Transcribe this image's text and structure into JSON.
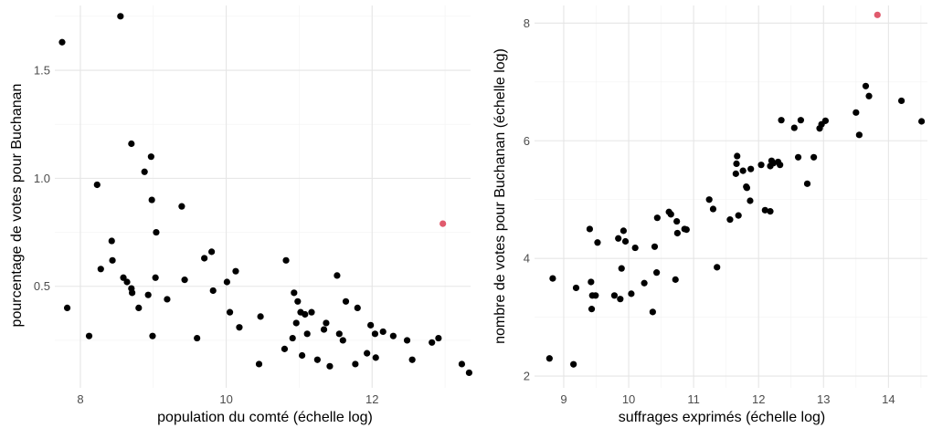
{
  "colors": {
    "point": "#000000",
    "highlight": "#e05a6d",
    "grid_major": "#e5e5e5",
    "grid_minor": "#f3f3f3",
    "tick_text": "#4d4d4d"
  },
  "chart_data": [
    {
      "type": "scatter",
      "xlabel": "population du comté (échelle log)",
      "ylabel": "pourcentage de votes pour Buchanan",
      "xlim": [
        7.65,
        13.35
      ],
      "ylim": [
        0.03,
        1.8
      ],
      "xticks": [
        8,
        10,
        12
      ],
      "yticks": [
        0.5,
        1.0,
        1.5
      ],
      "xtick_labels": [
        "8",
        "10",
        "12"
      ],
      "ytick_labels": [
        "0.5",
        "1.0",
        "1.5"
      ],
      "grid": true,
      "points": [
        [
          7.75,
          1.63
        ],
        [
          7.82,
          0.4
        ],
        [
          8.12,
          0.27
        ],
        [
          8.23,
          0.97
        ],
        [
          8.28,
          0.58
        ],
        [
          8.43,
          0.71
        ],
        [
          8.44,
          0.62
        ],
        [
          8.55,
          1.75
        ],
        [
          8.59,
          0.54
        ],
        [
          8.64,
          0.52
        ],
        [
          8.7,
          1.16
        ],
        [
          8.7,
          0.49
        ],
        [
          8.71,
          0.47
        ],
        [
          8.8,
          0.4
        ],
        [
          8.88,
          1.03
        ],
        [
          8.93,
          0.46
        ],
        [
          8.97,
          1.1
        ],
        [
          8.98,
          0.9
        ],
        [
          8.99,
          0.27
        ],
        [
          9.04,
          0.75
        ],
        [
          9.03,
          0.54
        ],
        [
          9.19,
          0.44
        ],
        [
          9.39,
          0.87
        ],
        [
          9.43,
          0.53
        ],
        [
          9.6,
          0.26
        ],
        [
          9.7,
          0.63
        ],
        [
          9.8,
          0.66
        ],
        [
          9.82,
          0.48
        ],
        [
          10.01,
          0.52
        ],
        [
          10.05,
          0.38
        ],
        [
          10.13,
          0.57
        ],
        [
          10.18,
          0.31
        ],
        [
          10.45,
          0.14
        ],
        [
          10.47,
          0.36
        ],
        [
          10.8,
          0.21
        ],
        [
          10.82,
          0.62
        ],
        [
          10.91,
          0.26
        ],
        [
          10.93,
          0.47
        ],
        [
          10.96,
          0.33
        ],
        [
          10.98,
          0.43
        ],
        [
          11.02,
          0.38
        ],
        [
          11.04,
          0.18
        ],
        [
          11.08,
          0.37
        ],
        [
          11.11,
          0.28
        ],
        [
          11.17,
          0.38
        ],
        [
          11.25,
          0.16
        ],
        [
          11.34,
          0.3
        ],
        [
          11.37,
          0.33
        ],
        [
          11.42,
          0.13
        ],
        [
          11.52,
          0.55
        ],
        [
          11.55,
          0.28
        ],
        [
          11.6,
          0.25
        ],
        [
          11.64,
          0.43
        ],
        [
          11.77,
          0.14
        ],
        [
          11.8,
          0.4
        ],
        [
          11.93,
          0.19
        ],
        [
          11.98,
          0.32
        ],
        [
          12.04,
          0.28
        ],
        [
          12.05,
          0.17
        ],
        [
          12.15,
          0.29
        ],
        [
          12.29,
          0.27
        ],
        [
          12.48,
          0.25
        ],
        [
          12.55,
          0.16
        ],
        [
          12.82,
          0.24
        ],
        [
          12.91,
          0.26
        ],
        [
          13.23,
          0.14
        ],
        [
          13.33,
          0.1
        ]
      ],
      "highlight": [
        [
          12.97,
          0.79
        ]
      ]
    },
    {
      "type": "scatter",
      "xlabel": "suffrages exprimés (échelle log)",
      "ylabel": "nombre de votes pour Buchanan (échelle log)",
      "xlim": [
        8.55,
        14.6
      ],
      "ylim": [
        1.8,
        8.3
      ],
      "xticks": [
        9,
        10,
        11,
        12,
        13,
        14
      ],
      "yticks": [
        2,
        4,
        6,
        8
      ],
      "xtick_labels": [
        "9",
        "10",
        "11",
        "12",
        "13",
        "14"
      ],
      "ytick_labels": [
        "2",
        "4",
        "6",
        "8"
      ],
      "grid": true,
      "points": [
        [
          8.78,
          2.3
        ],
        [
          8.83,
          3.66
        ],
        [
          9.15,
          2.2
        ],
        [
          9.19,
          3.5
        ],
        [
          9.4,
          4.5
        ],
        [
          9.42,
          3.6
        ],
        [
          9.43,
          3.14
        ],
        [
          9.44,
          3.37
        ],
        [
          9.49,
          3.37
        ],
        [
          9.52,
          4.27
        ],
        [
          9.78,
          3.37
        ],
        [
          9.84,
          4.34
        ],
        [
          9.87,
          3.31
        ],
        [
          9.89,
          3.83
        ],
        [
          9.92,
          4.47
        ],
        [
          9.95,
          4.29
        ],
        [
          10.04,
          3.4
        ],
        [
          10.1,
          4.18
        ],
        [
          10.24,
          3.58
        ],
        [
          10.37,
          3.09
        ],
        [
          10.4,
          4.2
        ],
        [
          10.43,
          3.76
        ],
        [
          10.44,
          4.69
        ],
        [
          10.62,
          4.79
        ],
        [
          10.65,
          4.75
        ],
        [
          10.72,
          3.64
        ],
        [
          10.74,
          4.63
        ],
        [
          10.75,
          4.43
        ],
        [
          10.86,
          4.5
        ],
        [
          10.89,
          4.49
        ],
        [
          11.24,
          5.0
        ],
        [
          11.3,
          4.84
        ],
        [
          11.36,
          3.85
        ],
        [
          11.56,
          4.66
        ],
        [
          11.65,
          5.44
        ],
        [
          11.66,
          5.61
        ],
        [
          11.67,
          5.74
        ],
        [
          11.69,
          4.73
        ],
        [
          11.76,
          5.49
        ],
        [
          11.81,
          5.22
        ],
        [
          11.82,
          5.2
        ],
        [
          11.87,
          4.98
        ],
        [
          11.88,
          5.52
        ],
        [
          12.04,
          5.59
        ],
        [
          12.1,
          4.82
        ],
        [
          12.18,
          4.8
        ],
        [
          12.18,
          5.57
        ],
        [
          12.2,
          5.66
        ],
        [
          12.23,
          5.62
        ],
        [
          12.3,
          5.64
        ],
        [
          12.33,
          5.59
        ],
        [
          12.35,
          6.35
        ],
        [
          12.55,
          6.22
        ],
        [
          12.61,
          5.72
        ],
        [
          12.65,
          6.35
        ],
        [
          12.75,
          5.27
        ],
        [
          12.85,
          5.72
        ],
        [
          12.94,
          6.21
        ],
        [
          12.97,
          6.28
        ],
        [
          13.03,
          6.34
        ],
        [
          13.5,
          6.48
        ],
        [
          13.55,
          6.1
        ],
        [
          13.65,
          6.93
        ],
        [
          13.7,
          6.76
        ],
        [
          14.2,
          6.68
        ],
        [
          14.51,
          6.33
        ]
      ],
      "highlight": [
        [
          13.83,
          8.14
        ]
      ]
    }
  ]
}
